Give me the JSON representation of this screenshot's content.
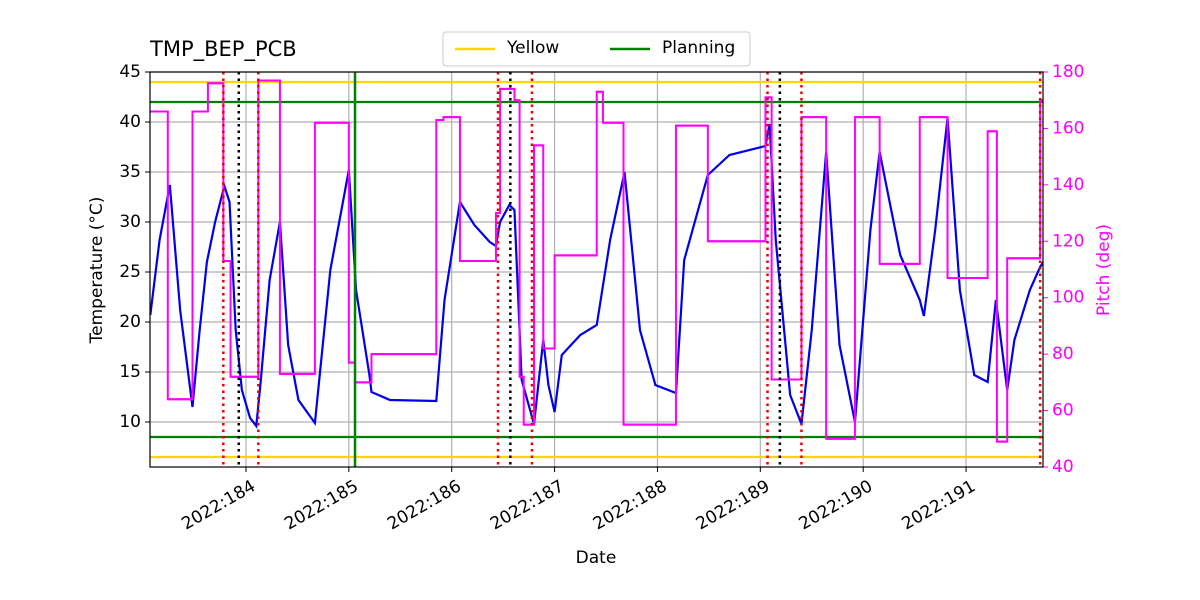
{
  "chart_data": {
    "type": "line",
    "title": "TMP_BEP_PCB",
    "xlabel": "Date",
    "ylabel": "Temperature (°C)",
    "y2label": "Pitch (deg)",
    "xlim": [
      183.067,
      191.748
    ],
    "xticks": [
      {
        "value": 184,
        "label": "2022:184"
      },
      {
        "value": 185,
        "label": "2022:185"
      },
      {
        "value": 186,
        "label": "2022:186"
      },
      {
        "value": 187,
        "label": "2022:187"
      },
      {
        "value": 188,
        "label": "2022:188"
      },
      {
        "value": 189,
        "label": "2022:189"
      },
      {
        "value": 190,
        "label": "2022:190"
      },
      {
        "value": 191,
        "label": "2022:191"
      }
    ],
    "ylim": [
      5.5,
      45
    ],
    "yticks": [
      10,
      15,
      20,
      25,
      30,
      35,
      40,
      45
    ],
    "y2lim": [
      40,
      180
    ],
    "y2ticks": [
      40,
      60,
      80,
      100,
      120,
      140,
      160,
      180
    ],
    "y2color": "#ff00ff",
    "grid": true,
    "legend": "upper center",
    "series": [
      {
        "color": "#0000ee",
        "axis": "y",
        "x": [
          183.07,
          183.16,
          183.26,
          183.36,
          183.48,
          183.55,
          183.62,
          183.7,
          183.79,
          183.84,
          183.9,
          183.96,
          184.04,
          184.1,
          184.14,
          184.23,
          184.33,
          184.41,
          184.51,
          184.67,
          184.82,
          185.0,
          185.07,
          185.2,
          185.22,
          185.4,
          185.85,
          185.93,
          186.08,
          186.22,
          186.37,
          186.43,
          186.47,
          186.56,
          186.61,
          186.68,
          186.8,
          186.89,
          186.94,
          187.0,
          187.07,
          187.25,
          187.41,
          187.54,
          187.68,
          187.83,
          187.98,
          188.18,
          188.26,
          188.49,
          188.7,
          189.05,
          189.09,
          189.15,
          189.29,
          189.4,
          189.5,
          189.64,
          189.77,
          189.92,
          190.07,
          190.16,
          190.36,
          190.55,
          190.59,
          190.7,
          190.82,
          190.94,
          191.08,
          191.21,
          191.29,
          191.4,
          191.47,
          191.62,
          191.72,
          191.75
        ],
        "values": [
          20.7,
          28.2,
          33.7,
          21.2,
          11.5,
          19.2,
          26,
          30,
          33.6,
          32,
          19.2,
          13.2,
          10.4,
          9.6,
          13.7,
          24.2,
          30,
          17.7,
          12.2,
          9.9,
          25.2,
          35.2,
          23.2,
          14.7,
          13,
          12.2,
          12.1,
          22.2,
          32,
          29.7,
          28,
          27.6,
          30,
          31.7,
          31.2,
          14.2,
          9.8,
          18.2,
          13.7,
          11,
          16.7,
          18.7,
          19.7,
          28.2,
          35,
          19.2,
          13.7,
          12.9,
          26.2,
          34.7,
          36.7,
          37.6,
          39.8,
          28.2,
          12.7,
          9.8,
          19.2,
          37,
          17.7,
          10,
          29.2,
          37,
          26.7,
          22.2,
          20.6,
          29.2,
          40.4,
          23.2,
          14.7,
          14,
          22.2,
          13.2,
          18.2,
          23.2,
          25.5,
          26
        ]
      },
      {
        "color": "#ff00ff",
        "axis": "y2",
        "drawstyle": "steps-post",
        "x": [
          183.07,
          183.24,
          183.48,
          183.63,
          183.78,
          183.85,
          184.12,
          184.33,
          184.67,
          185.0,
          185.06,
          185.22,
          185.85,
          185.92,
          186.08,
          186.43,
          186.47,
          186.61,
          186.66,
          186.7,
          186.8,
          186.89,
          187.0,
          187.41,
          187.47,
          187.67,
          188.18,
          188.49,
          189.05,
          189.11,
          189.4,
          189.64,
          189.92,
          190.16,
          190.55,
          190.82,
          191.21,
          191.3,
          191.4,
          191.72
        ],
        "values": [
          166,
          64,
          166,
          176,
          113,
          72,
          177,
          73,
          162,
          77,
          70,
          80,
          163,
          164,
          113,
          130,
          174,
          170,
          72,
          55,
          154,
          82,
          115,
          173,
          162,
          55,
          161,
          120,
          171,
          71,
          164,
          50,
          164,
          112,
          164,
          107,
          159,
          49,
          114,
          170
        ]
      }
    ],
    "hlines": [
      {
        "name": "Yellow",
        "color": "#ffd700",
        "values": [
          44,
          6.5
        ]
      },
      {
        "name": "Planning",
        "color": "#008000",
        "values": [
          42,
          8.5
        ]
      }
    ],
    "vlines": [
      {
        "color": "#ee0000",
        "style": "dotted",
        "x": [
          183.78,
          184.12,
          186.45,
          186.78,
          189.07,
          189.4,
          191.72
        ]
      },
      {
        "color": "#000000",
        "style": "dotted",
        "x": [
          183.93,
          186.57,
          189.19
        ]
      },
      {
        "color": "#008000",
        "style": "solid",
        "x": [
          185.06
        ]
      }
    ]
  }
}
